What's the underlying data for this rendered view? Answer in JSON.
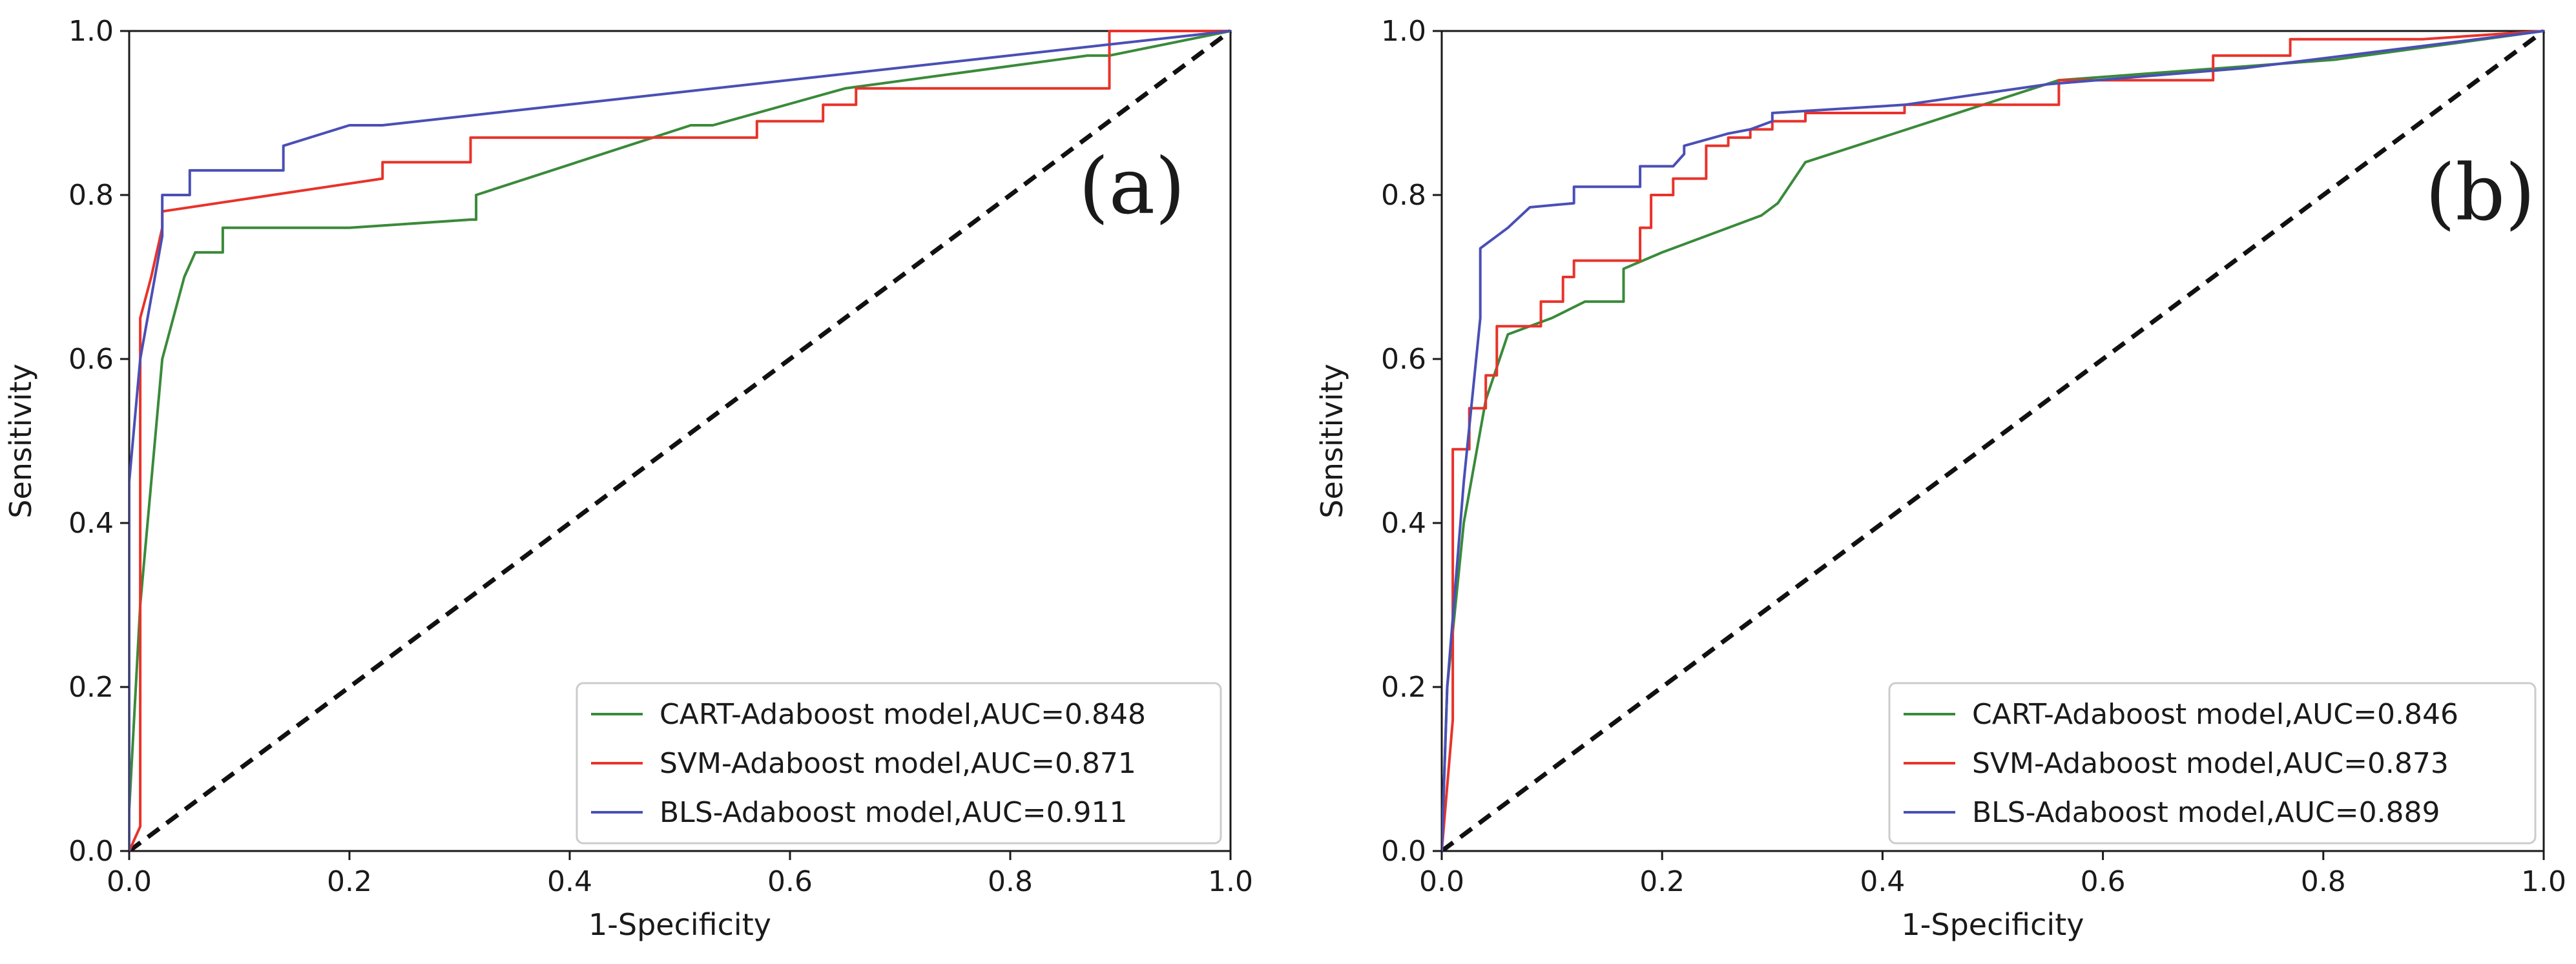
{
  "chart_data": [
    {
      "type": "line",
      "panel_label": "(a)",
      "xlabel": "1-Specificity",
      "ylabel": "Sensitivity",
      "xlim": [
        0.0,
        1.0
      ],
      "ylim": [
        0.0,
        1.0
      ],
      "xticks": [
        "0.0",
        "0.2",
        "0.4",
        "0.6",
        "0.8",
        "1.0"
      ],
      "yticks": [
        "0.0",
        "0.2",
        "0.4",
        "0.6",
        "0.8",
        "1.0"
      ],
      "grid": false,
      "legend_position": "lower-right",
      "series": [
        {
          "name": "CART-Adaboost model,AUC=0.848",
          "color": "#3a8a3a",
          "x": [
            0.0,
            0.0,
            0.01,
            0.03,
            0.05,
            0.06,
            0.08,
            0.085,
            0.085,
            0.2,
            0.31,
            0.315,
            0.315,
            0.51,
            0.53,
            0.65,
            0.87,
            0.89,
            1.0
          ],
          "y": [
            0.0,
            0.05,
            0.3,
            0.6,
            0.7,
            0.73,
            0.73,
            0.73,
            0.76,
            0.76,
            0.77,
            0.77,
            0.8,
            0.885,
            0.885,
            0.93,
            0.97,
            0.97,
            1.0
          ]
        },
        {
          "name": "SVM-Adaboost model,AUC=0.871",
          "color": "#e8332a",
          "x": [
            0.0,
            0.01,
            0.01,
            0.02,
            0.03,
            0.03,
            0.23,
            0.23,
            0.31,
            0.31,
            0.57,
            0.57,
            0.63,
            0.63,
            0.66,
            0.66,
            0.7,
            0.7,
            0.89,
            0.89,
            1.0
          ],
          "y": [
            0.0,
            0.03,
            0.65,
            0.7,
            0.76,
            0.78,
            0.82,
            0.84,
            0.84,
            0.87,
            0.87,
            0.89,
            0.89,
            0.91,
            0.91,
            0.93,
            0.93,
            0.93,
            0.93,
            1.0,
            1.0
          ]
        },
        {
          "name": "BLS-Adaboost model,AUC=0.911",
          "color": "#4a4fb5",
          "x": [
            0.0,
            0.0,
            0.01,
            0.03,
            0.03,
            0.055,
            0.055,
            0.14,
            0.14,
            0.2,
            0.23,
            1.0
          ],
          "y": [
            0.0,
            0.45,
            0.6,
            0.75,
            0.8,
            0.8,
            0.83,
            0.83,
            0.86,
            0.885,
            0.885,
            1.0
          ]
        },
        {
          "name": "chance",
          "color": "#111111",
          "dashed": true,
          "x": [
            0.0,
            1.0
          ],
          "y": [
            0.0,
            1.0
          ]
        }
      ]
    },
    {
      "type": "line",
      "panel_label": "(b)",
      "xlabel": "1-Specificity",
      "ylabel": "Sensitivity",
      "xlim": [
        0.0,
        1.0
      ],
      "ylim": [
        0.0,
        1.0
      ],
      "xticks": [
        "0.0",
        "0.2",
        "0.4",
        "0.6",
        "0.8",
        "1.0"
      ],
      "yticks": [
        "0.0",
        "0.2",
        "0.4",
        "0.6",
        "0.8",
        "1.0"
      ],
      "grid": false,
      "legend_position": "lower-right",
      "series": [
        {
          "name": "CART-Adaboost model,AUC=0.846",
          "color": "#3a8a3a",
          "x": [
            0.0,
            0.005,
            0.02,
            0.04,
            0.06,
            0.1,
            0.13,
            0.165,
            0.165,
            0.2,
            0.29,
            0.305,
            0.33,
            0.56,
            0.81,
            1.0
          ],
          "y": [
            0.0,
            0.2,
            0.4,
            0.55,
            0.63,
            0.65,
            0.67,
            0.67,
            0.71,
            0.73,
            0.775,
            0.79,
            0.84,
            0.94,
            0.965,
            1.0
          ]
        },
        {
          "name": "SVM-Adaboost model,AUC=0.873",
          "color": "#e8332a",
          "x": [
            0.0,
            0.01,
            0.01,
            0.015,
            0.015,
            0.025,
            0.025,
            0.04,
            0.04,
            0.05,
            0.05,
            0.075,
            0.075,
            0.09,
            0.09,
            0.11,
            0.11,
            0.12,
            0.12,
            0.18,
            0.18,
            0.19,
            0.19,
            0.21,
            0.21,
            0.22,
            0.22,
            0.24,
            0.24,
            0.26,
            0.26,
            0.28,
            0.28,
            0.3,
            0.3,
            0.33,
            0.33,
            0.42,
            0.42,
            0.56,
            0.56,
            0.65,
            0.65,
            0.7,
            0.7,
            0.77,
            0.77,
            0.89,
            1.0
          ],
          "y": [
            0.0,
            0.16,
            0.49,
            0.49,
            0.49,
            0.49,
            0.54,
            0.54,
            0.58,
            0.58,
            0.64,
            0.64,
            0.64,
            0.64,
            0.67,
            0.67,
            0.7,
            0.7,
            0.72,
            0.72,
            0.76,
            0.76,
            0.8,
            0.8,
            0.82,
            0.82,
            0.82,
            0.82,
            0.86,
            0.86,
            0.87,
            0.87,
            0.88,
            0.88,
            0.89,
            0.89,
            0.9,
            0.9,
            0.91,
            0.91,
            0.94,
            0.94,
            0.94,
            0.94,
            0.97,
            0.97,
            0.99,
            0.99,
            1.0
          ]
        },
        {
          "name": "BLS-Adaboost model,AUC=0.889",
          "color": "#4a4fb5",
          "x": [
            0.0,
            0.005,
            0.02,
            0.035,
            0.035,
            0.06,
            0.08,
            0.08,
            0.12,
            0.12,
            0.18,
            0.18,
            0.21,
            0.22,
            0.22,
            0.26,
            0.28,
            0.3,
            0.3,
            0.42,
            0.55,
            0.73,
            1.0
          ],
          "y": [
            0.0,
            0.2,
            0.45,
            0.65,
            0.735,
            0.76,
            0.785,
            0.785,
            0.79,
            0.81,
            0.81,
            0.835,
            0.835,
            0.85,
            0.86,
            0.875,
            0.88,
            0.89,
            0.9,
            0.91,
            0.935,
            0.955,
            1.0
          ]
        },
        {
          "name": "chance",
          "color": "#111111",
          "dashed": true,
          "x": [
            0.0,
            1.0
          ],
          "y": [
            0.0,
            1.0
          ]
        }
      ]
    }
  ]
}
